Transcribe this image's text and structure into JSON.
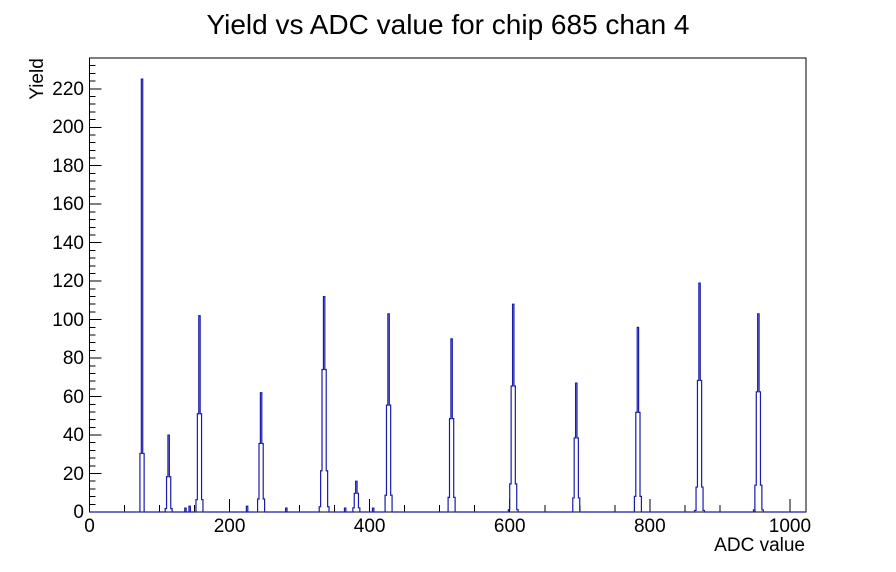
{
  "title": "Yield vs ADC value for chip 685 chan 4",
  "x_axis": {
    "label": "ADC value",
    "min": 0,
    "max": 1023,
    "major_ticks": [
      0,
      200,
      400,
      600,
      800,
      1000
    ],
    "minor_tick_step": 50
  },
  "y_axis": {
    "label": "Yield",
    "min": 0,
    "max": 236,
    "major_ticks": [
      0,
      20,
      40,
      60,
      80,
      100,
      120,
      140,
      160,
      180,
      200,
      220
    ],
    "minor_tick_step": 4
  },
  "colors": {
    "line": "#1b1bab",
    "frame": "#000000",
    "background": "#ffffff",
    "text": "#000000"
  },
  "chart_data": {
    "type": "bar",
    "title": "Yield vs ADC value for chip 685 chan 4",
    "xlabel": "ADC value",
    "ylabel": "Yield",
    "xlim": [
      0,
      1023
    ],
    "ylim": [
      0,
      236
    ],
    "grid": false,
    "legend": false,
    "bin_width_adc": 2,
    "peaks": [
      {
        "adc": 74,
        "yield": 225,
        "sigma": 1.0
      },
      {
        "adc": 113,
        "yield": 40,
        "sigma": 1.6
      },
      {
        "adc": 157,
        "yield": 102,
        "sigma": 1.7
      },
      {
        "adc": 244,
        "yield": 62,
        "sigma": 1.9
      },
      {
        "adc": 334,
        "yield": 112,
        "sigma": 2.2
      },
      {
        "adc": 381,
        "yield": 16,
        "sigma": 2.0
      },
      {
        "adc": 426,
        "yield": 103,
        "sigma": 1.8
      },
      {
        "adc": 516,
        "yield": 90,
        "sigma": 1.8
      },
      {
        "adc": 604,
        "yield": 108,
        "sigma": 2.0
      },
      {
        "adc": 694,
        "yield": 67,
        "sigma": 1.9
      },
      {
        "adc": 783,
        "yield": 96,
        "sigma": 1.8
      },
      {
        "adc": 870,
        "yield": 119,
        "sigma": 1.9
      },
      {
        "adc": 954,
        "yield": 103,
        "sigma": 2.0
      }
    ],
    "noise_blips": [
      {
        "adc": 136,
        "yield": 2
      },
      {
        "adc": 143,
        "yield": 3
      },
      {
        "adc": 224,
        "yield": 3
      },
      {
        "adc": 281,
        "yield": 2
      },
      {
        "adc": 364,
        "yield": 2
      },
      {
        "adc": 404,
        "yield": 2
      }
    ]
  }
}
